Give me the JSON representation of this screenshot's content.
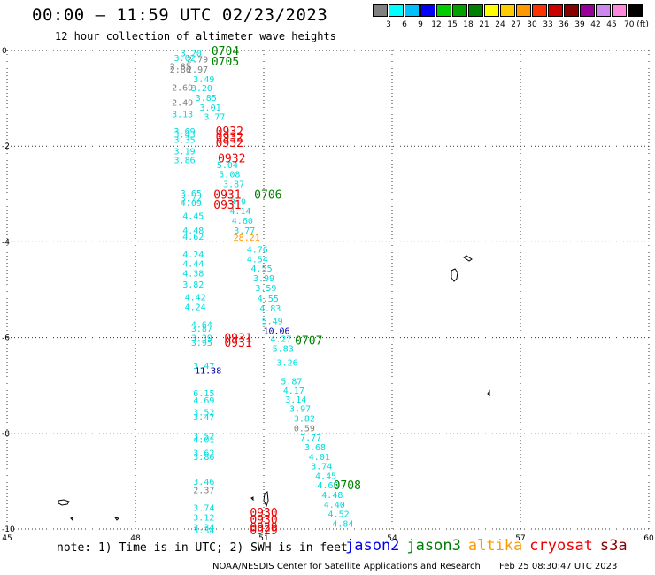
{
  "header": {
    "title": "00:00 – 11:59 UTC 02/23/2023",
    "subtitle": "12 hour collection of altimeter wave heights"
  },
  "colorbar": {
    "colors": [
      "#808080",
      "#00ffff",
      "#00bfff",
      "#0000ff",
      "#00cc00",
      "#00a000",
      "#008000",
      "#ffff00",
      "#ffcc00",
      "#ff9900",
      "#ff3300",
      "#cc0000",
      "#880000",
      "#990099",
      "#cc88ee",
      "#ff88dd",
      "#000000"
    ],
    "labels": [
      "3",
      "6",
      "9",
      "12",
      "15",
      "18",
      "21",
      "24",
      "27",
      "30",
      "33",
      "36",
      "39",
      "42",
      "45",
      "70 (ft)"
    ]
  },
  "axes": {
    "x_ticks": [
      "45",
      "48",
      "51",
      "54",
      "57",
      "60"
    ],
    "y_ticks": [
      "0",
      "-2",
      "-4",
      "-6",
      "-8",
      "-10"
    ],
    "grid": "dotted"
  },
  "map_data": {
    "wave_heights": [
      {
        "lon": 49.3,
        "lat": -0.05,
        "val": "3.20",
        "color": "#00dddd"
      },
      {
        "lon": 49.15,
        "lat": -0.15,
        "val": "3.02",
        "color": "#00dddd"
      },
      {
        "lon": 49.45,
        "lat": -0.18,
        "val": "2.79",
        "color": "#808080"
      },
      {
        "lon": 49.05,
        "lat": -0.32,
        "val": "2.85",
        "color": "#808080"
      },
      {
        "lon": 49.05,
        "lat": -0.39,
        "val": "2.86",
        "color": "#808080"
      },
      {
        "lon": 49.45,
        "lat": -0.39,
        "val": "2.97",
        "color": "#808080"
      },
      {
        "lon": 49.6,
        "lat": -0.59,
        "val": "3.49",
        "color": "#00dddd"
      },
      {
        "lon": 49.1,
        "lat": -0.77,
        "val": "2.69",
        "color": "#808080"
      },
      {
        "lon": 49.55,
        "lat": -0.78,
        "val": "3.20",
        "color": "#00dddd"
      },
      {
        "lon": 49.65,
        "lat": -0.98,
        "val": "3.85",
        "color": "#00dddd"
      },
      {
        "lon": 49.1,
        "lat": -1.08,
        "val": "2.49",
        "color": "#808080"
      },
      {
        "lon": 49.75,
        "lat": -1.18,
        "val": "3.01",
        "color": "#00dddd"
      },
      {
        "lon": 49.1,
        "lat": -1.32,
        "val": "3.13",
        "color": "#00dddd"
      },
      {
        "lon": 49.85,
        "lat": -1.38,
        "val": "3.77",
        "color": "#00dddd"
      },
      {
        "lon": 49.15,
        "lat": -1.68,
        "val": "3.69",
        "color": "#00dddd"
      },
      {
        "lon": 49.15,
        "lat": -1.75,
        "val": "3.43",
        "color": "#00dddd"
      },
      {
        "lon": 49.15,
        "lat": -1.86,
        "val": "3.35",
        "color": "#00dddd"
      },
      {
        "lon": 49.15,
        "lat": -2.1,
        "val": "3.19",
        "color": "#00dddd"
      },
      {
        "lon": 49.15,
        "lat": -2.28,
        "val": "3.86",
        "color": "#00dddd"
      },
      {
        "lon": 50.15,
        "lat": -2.38,
        "val": "5.04",
        "color": "#00dddd"
      },
      {
        "lon": 50.2,
        "lat": -2.58,
        "val": "5.08",
        "color": "#00dddd"
      },
      {
        "lon": 50.3,
        "lat": -2.78,
        "val": "3.87",
        "color": "#00dddd"
      },
      {
        "lon": 49.3,
        "lat": -2.98,
        "val": "3.65",
        "color": "#00dddd"
      },
      {
        "lon": 49.3,
        "lat": -3.08,
        "val": "3.72",
        "color": "#00dddd"
      },
      {
        "lon": 49.3,
        "lat": -3.18,
        "val": "4.09",
        "color": "#00dddd"
      },
      {
        "lon": 50.4,
        "lat": -3.15,
        "val": "3.9",
        "color": "#00dddd"
      },
      {
        "lon": 50.45,
        "lat": -3.35,
        "val": "4.14",
        "color": "#00dddd"
      },
      {
        "lon": 49.35,
        "lat": -3.45,
        "val": "4.45",
        "color": "#00dddd"
      },
      {
        "lon": 50.5,
        "lat": -3.55,
        "val": "4.60",
        "color": "#00dddd"
      },
      {
        "lon": 49.35,
        "lat": -3.75,
        "val": "4.48",
        "color": "#00dddd"
      },
      {
        "lon": 50.55,
        "lat": -3.75,
        "val": "3.77",
        "color": "#00dddd"
      },
      {
        "lon": 49.35,
        "lat": -3.88,
        "val": "4.62",
        "color": "#00dddd"
      },
      {
        "lon": 50.6,
        "lat": -3.9,
        "val": "28.21",
        "color": "#ff9900"
      },
      {
        "lon": 50.85,
        "lat": -4.15,
        "val": "4.76",
        "color": "#00dddd"
      },
      {
        "lon": 49.35,
        "lat": -4.25,
        "val": "4.24",
        "color": "#00dddd"
      },
      {
        "lon": 50.85,
        "lat": -4.35,
        "val": "4.54",
        "color": "#00dddd"
      },
      {
        "lon": 49.35,
        "lat": -4.45,
        "val": "4.44",
        "color": "#00dddd"
      },
      {
        "lon": 50.95,
        "lat": -4.55,
        "val": "4.55",
        "color": "#00dddd"
      },
      {
        "lon": 49.35,
        "lat": -4.65,
        "val": "4.38",
        "color": "#00dddd"
      },
      {
        "lon": 51.0,
        "lat": -4.75,
        "val": "3.99",
        "color": "#00dddd"
      },
      {
        "lon": 49.35,
        "lat": -4.88,
        "val": "3.82",
        "color": "#00dddd"
      },
      {
        "lon": 51.05,
        "lat": -4.95,
        "val": "3.59",
        "color": "#00dddd"
      },
      {
        "lon": 49.4,
        "lat": -5.15,
        "val": "4.42",
        "color": "#00dddd"
      },
      {
        "lon": 51.1,
        "lat": -5.18,
        "val": "4.55",
        "color": "#00dddd"
      },
      {
        "lon": 49.4,
        "lat": -5.35,
        "val": "4.24",
        "color": "#00dddd"
      },
      {
        "lon": 51.15,
        "lat": -5.38,
        "val": "4.83",
        "color": "#00dddd"
      },
      {
        "lon": 51.2,
        "lat": -5.65,
        "val": "5.49",
        "color": "#00dddd"
      },
      {
        "lon": 49.55,
        "lat": -5.72,
        "val": "4.64",
        "color": "#00dddd"
      },
      {
        "lon": 49.55,
        "lat": -5.8,
        "val": "3.87",
        "color": "#00dddd"
      },
      {
        "lon": 51.3,
        "lat": -5.85,
        "val": "10.06",
        "color": "#0000aa"
      },
      {
        "lon": 49.55,
        "lat": -6.0,
        "val": "3.39",
        "color": "#00dddd"
      },
      {
        "lon": 49.55,
        "lat": -6.1,
        "val": "3.95",
        "color": "#00dddd"
      },
      {
        "lon": 51.4,
        "lat": -6.02,
        "val": "4.27",
        "color": "#00dddd"
      },
      {
        "lon": 51.45,
        "lat": -6.22,
        "val": "5.83",
        "color": "#00dddd"
      },
      {
        "lon": 51.55,
        "lat": -6.52,
        "val": "3.26",
        "color": "#00dddd"
      },
      {
        "lon": 49.6,
        "lat": -6.58,
        "val": "3.47",
        "color": "#00dddd"
      },
      {
        "lon": 49.7,
        "lat": -6.68,
        "val": "11.38",
        "color": "#0000aa"
      },
      {
        "lon": 51.65,
        "lat": -6.9,
        "val": "5.87",
        "color": "#00dddd"
      },
      {
        "lon": 51.7,
        "lat": -7.1,
        "val": "4.17",
        "color": "#00dddd"
      },
      {
        "lon": 49.6,
        "lat": -7.15,
        "val": "6.15",
        "color": "#00dddd"
      },
      {
        "lon": 51.75,
        "lat": -7.28,
        "val": "3.14",
        "color": "#00dddd"
      },
      {
        "lon": 49.6,
        "lat": -7.3,
        "val": "4.69",
        "color": "#00dddd"
      },
      {
        "lon": 51.85,
        "lat": -7.48,
        "val": "3.97",
        "color": "#00dddd"
      },
      {
        "lon": 49.6,
        "lat": -7.55,
        "val": "3.52",
        "color": "#00dddd"
      },
      {
        "lon": 49.6,
        "lat": -7.65,
        "val": "3.47",
        "color": "#00dddd"
      },
      {
        "lon": 51.95,
        "lat": -7.68,
        "val": "3.82",
        "color": "#00dddd"
      },
      {
        "lon": 51.95,
        "lat": -7.88,
        "val": "0.59",
        "color": "#808080"
      },
      {
        "lon": 49.6,
        "lat": -8.05,
        "val": "3.52",
        "color": "#00dddd"
      },
      {
        "lon": 49.6,
        "lat": -8.12,
        "val": "4.01",
        "color": "#00dddd"
      },
      {
        "lon": 52.1,
        "lat": -8.08,
        "val": "7.77",
        "color": "#00dddd"
      },
      {
        "lon": 52.2,
        "lat": -8.28,
        "val": "3.68",
        "color": "#00dddd"
      },
      {
        "lon": 49.6,
        "lat": -8.4,
        "val": "3.62",
        "color": "#00dddd"
      },
      {
        "lon": 49.6,
        "lat": -8.48,
        "val": "3.86",
        "color": "#00dddd"
      },
      {
        "lon": 52.3,
        "lat": -8.48,
        "val": "4.01",
        "color": "#00dddd"
      },
      {
        "lon": 52.35,
        "lat": -8.68,
        "val": "3.74",
        "color": "#00dddd"
      },
      {
        "lon": 52.45,
        "lat": -8.88,
        "val": "4.45",
        "color": "#00dddd"
      },
      {
        "lon": 49.6,
        "lat": -9.0,
        "val": "3.46",
        "color": "#00dddd"
      },
      {
        "lon": 52.5,
        "lat": -9.08,
        "val": "4.65",
        "color": "#00dddd"
      },
      {
        "lon": 49.6,
        "lat": -9.18,
        "val": "2.37",
        "color": "#808080"
      },
      {
        "lon": 52.6,
        "lat": -9.28,
        "val": "4.48",
        "color": "#00dddd"
      },
      {
        "lon": 52.65,
        "lat": -9.48,
        "val": "4.40",
        "color": "#00dddd"
      },
      {
        "lon": 49.6,
        "lat": -9.55,
        "val": "3.74",
        "color": "#00dddd"
      },
      {
        "lon": 52.75,
        "lat": -9.68,
        "val": "4.52",
        "color": "#00dddd"
      },
      {
        "lon": 49.6,
        "lat": -9.75,
        "val": "3.12",
        "color": "#00dddd"
      },
      {
        "lon": 52.85,
        "lat": -9.88,
        "val": "4.84",
        "color": "#00dddd"
      },
      {
        "lon": 49.6,
        "lat": -9.95,
        "val": "3.34",
        "color": "#00dddd"
      },
      {
        "lon": 49.6,
        "lat": -10.02,
        "val": "3.34",
        "color": "#00dddd"
      }
    ],
    "pass_times": [
      {
        "lon": 50.1,
        "lat": 0.0,
        "val": "0704",
        "color": "#008000"
      },
      {
        "lon": 50.1,
        "lat": -0.22,
        "val": "0705",
        "color": "#008000"
      },
      {
        "lon": 50.2,
        "lat": -1.68,
        "val": "0932",
        "color": "#ee0000"
      },
      {
        "lon": 50.2,
        "lat": -1.8,
        "val": "0932",
        "color": "#ee0000"
      },
      {
        "lon": 50.2,
        "lat": -1.92,
        "val": "0932",
        "color": "#ee0000"
      },
      {
        "lon": 50.25,
        "lat": -2.25,
        "val": "0932",
        "color": "#ee0000"
      },
      {
        "lon": 50.15,
        "lat": -3.0,
        "val": "0931",
        "color": "#ee0000"
      },
      {
        "lon": 50.15,
        "lat": -3.22,
        "val": "0931",
        "color": "#ee0000"
      },
      {
        "lon": 51.1,
        "lat": -3.0,
        "val": "0706",
        "color": "#008000"
      },
      {
        "lon": 50.4,
        "lat": -6.0,
        "val": "0931",
        "color": "#ee0000"
      },
      {
        "lon": 50.4,
        "lat": -6.1,
        "val": "0931",
        "color": "#ee0000"
      },
      {
        "lon": 52.05,
        "lat": -6.05,
        "val": "0707",
        "color": "#008000"
      },
      {
        "lon": 52.95,
        "lat": -9.08,
        "val": "0708",
        "color": "#008000"
      },
      {
        "lon": 51.0,
        "lat": -9.65,
        "val": "0930",
        "color": "#ee0000"
      },
      {
        "lon": 51.0,
        "lat": -9.8,
        "val": "0930",
        "color": "#ee0000"
      },
      {
        "lon": 51.0,
        "lat": -9.95,
        "val": "0929",
        "color": "#ee0000"
      },
      {
        "lon": 51.0,
        "lat": -10.02,
        "val": "0929",
        "color": "#ee0000"
      }
    ]
  },
  "note": "note: 1) Time is in UTC; 2) SWH is in feet",
  "legend": [
    {
      "name": "jason2",
      "color": "#0000ee"
    },
    {
      "name": "jason3",
      "color": "#008000"
    },
    {
      "name": "altika",
      "color": "#ff9900"
    },
    {
      "name": "cryosat",
      "color": "#ee0000"
    },
    {
      "name": "s3a",
      "color": "#880000"
    }
  ],
  "credit": {
    "org": "NOAA/NESDIS Center for Satellite Applications and Research",
    "timestamp": "Feb 25 08:30:47 UTC 2023"
  }
}
